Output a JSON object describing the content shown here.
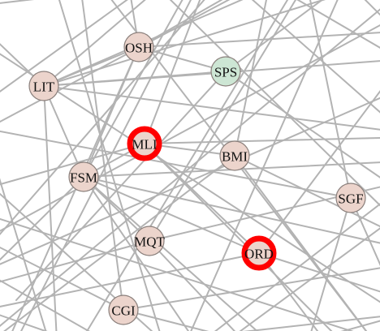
{
  "graph": {
    "colors": {
      "edge": "#b3b3b3",
      "node_default_fill": "#ecd4cc",
      "node_special_fill": "#cde6d4",
      "node_stroke": "#8a7f7b",
      "highlight_ring": "#ff0000",
      "label": "#111111"
    },
    "nodes": [
      {
        "id": "OSH",
        "label": "OSH",
        "highlighted": false,
        "style": "default"
      },
      {
        "id": "LIT",
        "label": "LIT",
        "highlighted": false,
        "style": "default"
      },
      {
        "id": "SPS",
        "label": "SPS",
        "highlighted": false,
        "style": "special"
      },
      {
        "id": "MLI",
        "label": "MLI",
        "highlighted": true,
        "style": "default"
      },
      {
        "id": "BMI",
        "label": "BMI",
        "highlighted": false,
        "style": "default"
      },
      {
        "id": "FSM",
        "label": "FSM",
        "highlighted": false,
        "style": "default"
      },
      {
        "id": "SGF",
        "label": "SGF",
        "highlighted": false,
        "style": "default"
      },
      {
        "id": "MQT",
        "label": "MQT",
        "highlighted": false,
        "style": "default"
      },
      {
        "id": "ORD",
        "label": "ORD",
        "highlighted": true,
        "style": "default"
      },
      {
        "id": "CGI",
        "label": "CGI",
        "highlighted": false,
        "style": "default"
      }
    ]
  }
}
